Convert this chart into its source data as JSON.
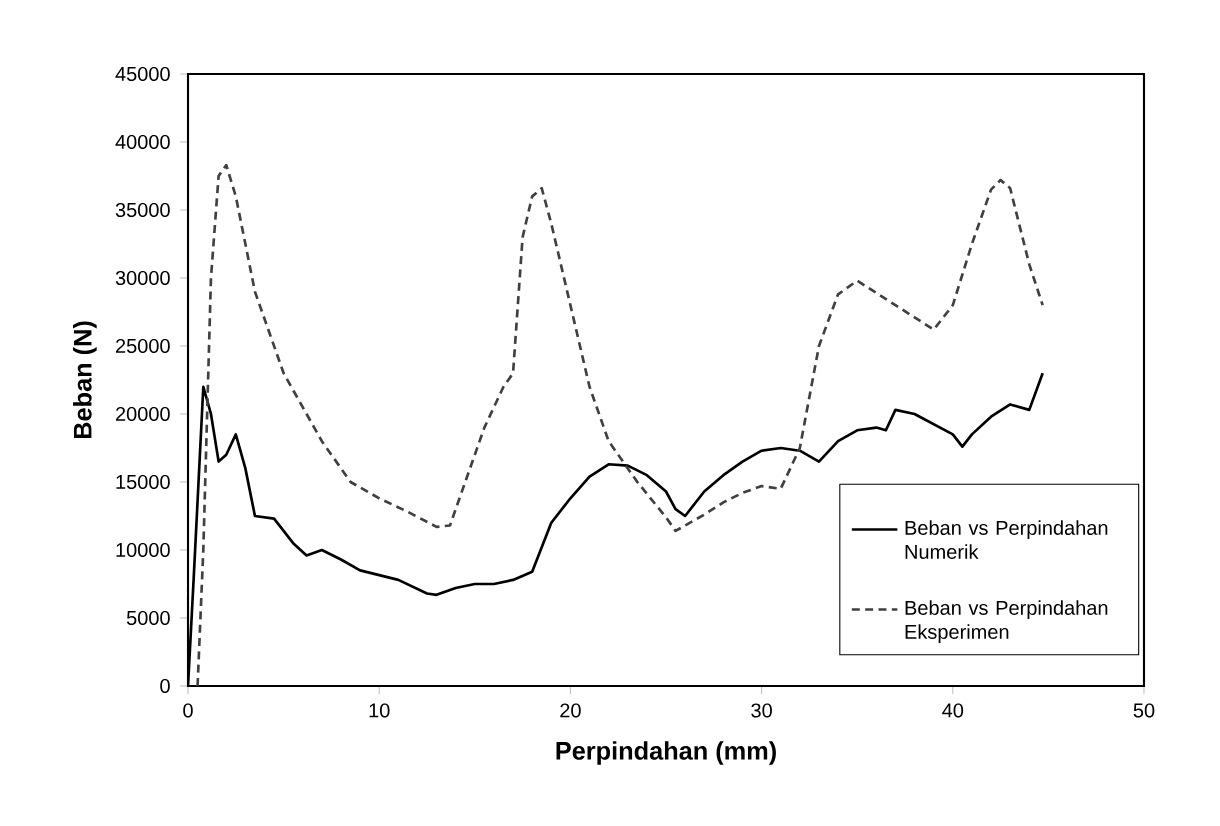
{
  "chart_data": {
    "type": "line",
    "xlabel": "Perpindahan (mm)",
    "ylabel": "Beban (N)",
    "xlim": [
      0,
      50
    ],
    "xticks": [
      0,
      10,
      20,
      30,
      40,
      50
    ],
    "ylim": [
      0,
      45000
    ],
    "yticks": [
      0,
      5000,
      10000,
      15000,
      20000,
      25000,
      30000,
      35000,
      40000,
      45000
    ],
    "grid": false,
    "legend": "bottom right",
    "series": [
      {
        "name": "Beban vs Perpindahan Numerik",
        "color": "#000000",
        "line_style": "solid",
        "x": [
          0,
          0.3,
          0.8,
          1.2,
          1.6,
          2.0,
          2.5,
          3.0,
          3.5,
          4.5,
          5.5,
          6.2,
          7,
          8,
          9,
          11,
          12.5,
          13,
          14,
          15,
          16,
          17,
          18,
          19,
          20,
          21,
          22,
          23,
          24,
          25,
          25.5,
          26,
          27,
          28,
          29,
          30,
          31,
          32,
          33,
          34,
          35,
          36,
          36.5,
          37,
          38,
          40,
          40.5,
          41,
          42,
          43,
          44,
          44.7
        ],
        "values": [
          0,
          8000,
          22000,
          20000,
          16500,
          17000,
          18500,
          16000,
          12500,
          12300,
          10500,
          9600,
          10000,
          9300,
          8500,
          7800,
          6800,
          6700,
          7200,
          7500,
          7500,
          7800,
          8400,
          12000,
          13800,
          15400,
          16300,
          16200,
          15500,
          14300,
          13000,
          12500,
          14300,
          15500,
          16500,
          17300,
          17500,
          17300,
          16500,
          18000,
          18800,
          19000,
          18800,
          20300,
          20000,
          18500,
          17600,
          18500,
          19800,
          20700,
          20300,
          23000
        ]
      },
      {
        "name": "Beban vs Perpindahan Eksperimen",
        "color": "#404040",
        "line_style": "dashed",
        "x": [
          0.5,
          0.8,
          1.2,
          1.6,
          2.0,
          2.5,
          3.5,
          5,
          7,
          8.5,
          10,
          11.5,
          13,
          13.7,
          14.5,
          15.5,
          16.5,
          17,
          17.5,
          18,
          18.5,
          19,
          20,
          21,
          22,
          23.5,
          25,
          25.5,
          27,
          28,
          29,
          30,
          31,
          32,
          33,
          34,
          35,
          37,
          39,
          40,
          41,
          42,
          42.5,
          43,
          44,
          44.7
        ],
        "values": [
          0,
          10000,
          30000,
          37500,
          38300,
          36000,
          29000,
          23000,
          18000,
          15000,
          13800,
          12800,
          11700,
          11800,
          15000,
          19000,
          22000,
          23000,
          33000,
          36000,
          36600,
          34000,
          28000,
          22000,
          18000,
          15000,
          12400,
          11400,
          12600,
          13500,
          14200,
          14700,
          14500,
          17500,
          25000,
          28800,
          29800,
          28000,
          26200,
          28000,
          32500,
          36500,
          37200,
          36600,
          31000,
          28000
        ]
      }
    ]
  }
}
